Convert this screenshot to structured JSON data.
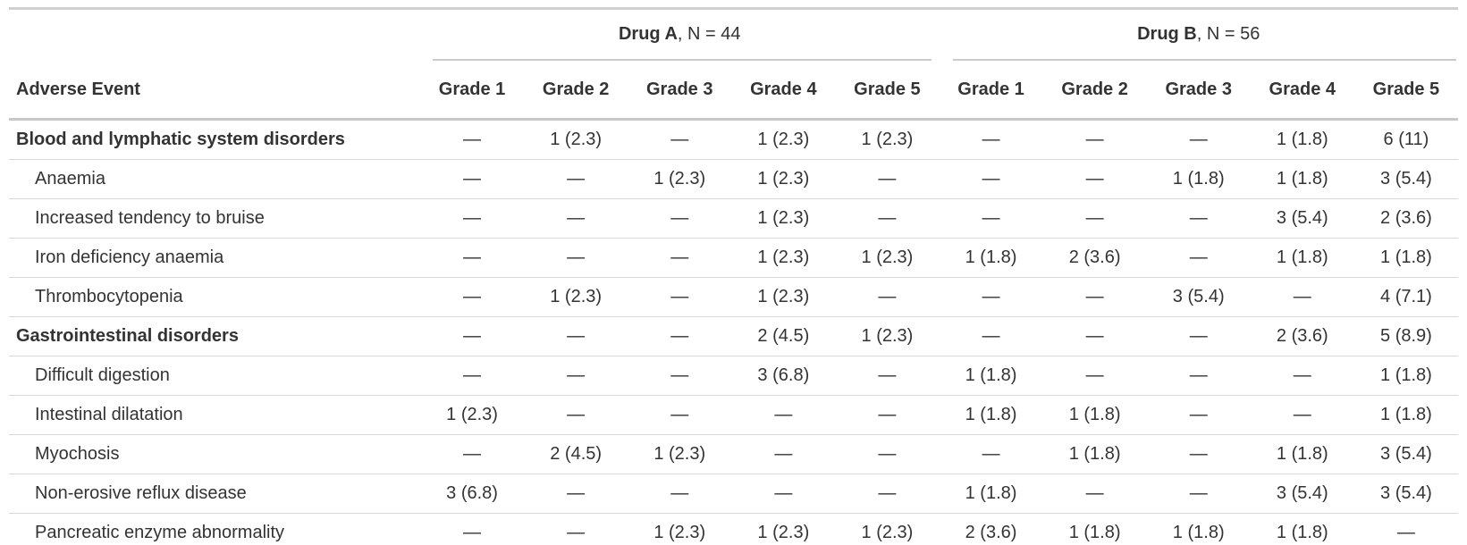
{
  "colors": {
    "text": "#333333",
    "row_border": "#D9D9D9",
    "frame_border": "#D0D0D0",
    "header_border": "#C8C8C8",
    "background": "#FFFFFF"
  },
  "chart_data": {
    "type": "table",
    "title": "",
    "spanners": [
      {
        "drug": "Drug A",
        "rest": ", N = 44"
      },
      {
        "drug": "Drug B",
        "rest": ", N = 56"
      }
    ],
    "columns": {
      "adverse_event": "Adverse Event",
      "grades": [
        "Grade 1",
        "Grade 2",
        "Grade 3",
        "Grade 4",
        "Grade 5"
      ]
    },
    "rows": [
      {
        "label": "Blood and lymphatic system disorders",
        "bold": true,
        "a": [
          "—",
          "1 (2.3)",
          "—",
          "1 (2.3)",
          "1 (2.3)"
        ],
        "b": [
          "—",
          "—",
          "—",
          "1 (1.8)",
          "6 (11)"
        ]
      },
      {
        "label": "Anaemia",
        "bold": false,
        "a": [
          "—",
          "—",
          "1 (2.3)",
          "1 (2.3)",
          "—"
        ],
        "b": [
          "—",
          "—",
          "1 (1.8)",
          "1 (1.8)",
          "3 (5.4)"
        ]
      },
      {
        "label": "Increased tendency to bruise",
        "bold": false,
        "a": [
          "—",
          "—",
          "—",
          "1 (2.3)",
          "—"
        ],
        "b": [
          "—",
          "—",
          "—",
          "3 (5.4)",
          "2 (3.6)"
        ]
      },
      {
        "label": "Iron deficiency anaemia",
        "bold": false,
        "a": [
          "—",
          "—",
          "—",
          "1 (2.3)",
          "1 (2.3)"
        ],
        "b": [
          "1 (1.8)",
          "2 (3.6)",
          "—",
          "1 (1.8)",
          "1 (1.8)"
        ]
      },
      {
        "label": "Thrombocytopenia",
        "bold": false,
        "a": [
          "—",
          "1 (2.3)",
          "—",
          "1 (2.3)",
          "—"
        ],
        "b": [
          "—",
          "—",
          "3 (5.4)",
          "—",
          "4 (7.1)"
        ]
      },
      {
        "label": "Gastrointestinal disorders",
        "bold": true,
        "a": [
          "—",
          "—",
          "—",
          "2 (4.5)",
          "1 (2.3)"
        ],
        "b": [
          "—",
          "—",
          "—",
          "2 (3.6)",
          "5 (8.9)"
        ]
      },
      {
        "label": "Difficult digestion",
        "bold": false,
        "a": [
          "—",
          "—",
          "—",
          "3 (6.8)",
          "—"
        ],
        "b": [
          "1 (1.8)",
          "—",
          "—",
          "—",
          "1 (1.8)"
        ]
      },
      {
        "label": "Intestinal dilatation",
        "bold": false,
        "a": [
          "1 (2.3)",
          "—",
          "—",
          "—",
          "—"
        ],
        "b": [
          "1 (1.8)",
          "1 (1.8)",
          "—",
          "—",
          "1 (1.8)"
        ]
      },
      {
        "label": "Myochosis",
        "bold": false,
        "a": [
          "—",
          "2 (4.5)",
          "1 (2.3)",
          "—",
          "—"
        ],
        "b": [
          "—",
          "1 (1.8)",
          "—",
          "1 (1.8)",
          "3 (5.4)"
        ]
      },
      {
        "label": "Non-erosive reflux disease",
        "bold": false,
        "a": [
          "3 (6.8)",
          "—",
          "—",
          "—",
          "—"
        ],
        "b": [
          "1 (1.8)",
          "—",
          "—",
          "3 (5.4)",
          "3 (5.4)"
        ]
      },
      {
        "label": "Pancreatic enzyme abnormality",
        "bold": false,
        "a": [
          "—",
          "—",
          "1 (2.3)",
          "1 (2.3)",
          "1 (2.3)"
        ],
        "b": [
          "2 (3.6)",
          "1 (1.8)",
          "1 (1.8)",
          "1 (1.8)",
          "—"
        ]
      }
    ]
  }
}
